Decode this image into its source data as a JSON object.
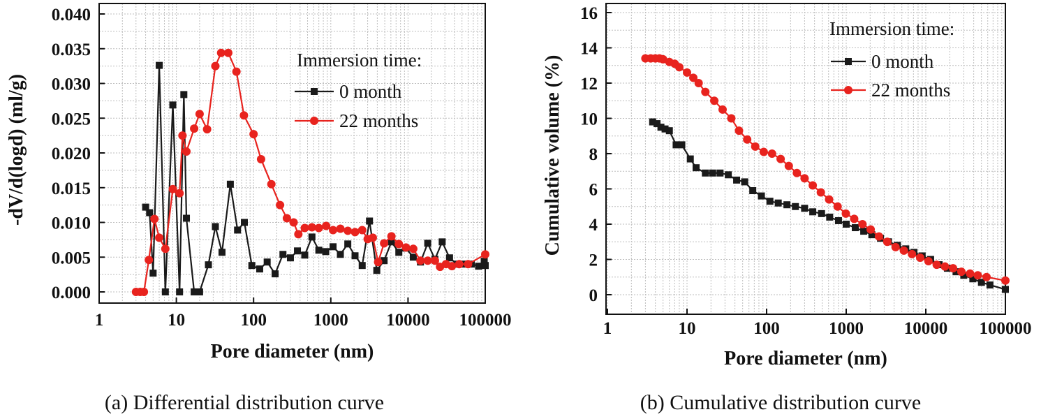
{
  "chart_data": [
    {
      "type": "line",
      "caption": "(a) Differential distribution curve",
      "xlabel": "Pore diameter (nm)",
      "ylabel": "-dV/d(logd) (ml/g)",
      "xscale": "log",
      "xlim": [
        1,
        100000
      ],
      "ylim": [
        0,
        0.04
      ],
      "xticks": [
        "1",
        "10",
        "100",
        "1000",
        "10000",
        "100000"
      ],
      "yticks": [
        "0.000",
        "0.005",
        "0.010",
        "0.015",
        "0.020",
        "0.025",
        "0.030",
        "0.035",
        "0.040"
      ],
      "grid": true,
      "legend_title": "Immersion time:",
      "legend_position": "top-right",
      "series": [
        {
          "name": "0 month",
          "color": "#1a1a1a",
          "marker": "square",
          "x": [
            4.0,
            4.5,
            5.0,
            6.0,
            7.2,
            9.0,
            11,
            12.5,
            13.5,
            17,
            20,
            26,
            32,
            39,
            50,
            62,
            76,
            95,
            120,
            150,
            190,
            240,
            300,
            370,
            460,
            570,
            700,
            860,
            1070,
            1330,
            1660,
            2060,
            2550,
            3170,
            3940,
            4900,
            6100,
            7600,
            9400,
            11700,
            14500,
            18000,
            22300,
            27700,
            34500,
            43000,
            53000,
            66000,
            82000,
            97000,
            100000
          ],
          "y": [
            0.0122,
            0.0114,
            0.0027,
            0.0326,
            0,
            0.0269,
            0,
            0.0284,
            0.0106,
            0,
            0,
            0.0039,
            0.0094,
            0.0057,
            0.0155,
            0.0089,
            0.01,
            0.0038,
            0.0033,
            0.0043,
            0.0026,
            0.0054,
            0.0049,
            0.0059,
            0.0053,
            0.0079,
            0.006,
            0.0058,
            0.0065,
            0.0054,
            0.0069,
            0.0052,
            0.0038,
            0.0102,
            0.0031,
            0.0045,
            0.0072,
            0.0057,
            0.0063,
            0.005,
            0.0043,
            0.007,
            0.0047,
            0.0072,
            0.0049,
            0.004,
            0.004,
            0.004,
            0.0037,
            0.0044,
            0.0038
          ]
        },
        {
          "name": "22 months",
          "color": "#e8231e",
          "marker": "circle",
          "x": [
            3.0,
            3.4,
            3.8,
            4.4,
            5.2,
            6.0,
            7.2,
            9,
            11,
            12,
            13.5,
            17,
            20,
            25,
            32,
            38,
            47,
            60,
            75,
            100,
            125,
            170,
            220,
            270,
            330,
            380,
            460,
            570,
            700,
            870,
            1070,
            1330,
            1660,
            2060,
            2550,
            3000,
            3500,
            4100,
            4900,
            6100,
            7600,
            9400,
            11700,
            14500,
            18000,
            22300,
            26000,
            31000,
            37000,
            46000,
            60000,
            100000
          ],
          "y": [
            0,
            0,
            0,
            0.0046,
            0.0105,
            0.0078,
            0.0062,
            0.0148,
            0.0142,
            0.0225,
            0.0202,
            0.0235,
            0.0256,
            0.0234,
            0.0325,
            0.0344,
            0.0344,
            0.0317,
            0.0254,
            0.0227,
            0.0191,
            0.0155,
            0.0125,
            0.0106,
            0.01,
            0.0083,
            0.0092,
            0.0093,
            0.0092,
            0.0095,
            0.0089,
            0.0091,
            0.0088,
            0.0086,
            0.0089,
            0.0076,
            0.0078,
            0.0043,
            0.007,
            0.008,
            0.0069,
            0.0064,
            0.0062,
            0.0045,
            0.0045,
            0.0045,
            0.0036,
            0.004,
            0.0037,
            0.004,
            0.004,
            0.0054
          ]
        }
      ]
    },
    {
      "type": "line",
      "caption": "(b) Cumulative distribution curve",
      "xlabel": "Pore diameter (nm)",
      "ylabel": "Cumulative volume (%)",
      "xscale": "log",
      "xlim": [
        1,
        100000
      ],
      "ylim": [
        0,
        16
      ],
      "xticks": [
        "1",
        "10",
        "100",
        "1000",
        "10000",
        "100000"
      ],
      "yticks": [
        "0",
        "2",
        "4",
        "6",
        "8",
        "10",
        "12",
        "14",
        "16"
      ],
      "grid": true,
      "legend_title": "Immersion time:",
      "legend_position": "top-right",
      "series": [
        {
          "name": "0 month",
          "color": "#1a1a1a",
          "marker": "square",
          "x": [
            3.7,
            4.2,
            4.7,
            5.3,
            6.0,
            7.3,
            8.6,
            11,
            13,
            17,
            21,
            26,
            33,
            42,
            53,
            67,
            86,
            110,
            140,
            180,
            230,
            300,
            380,
            490,
            620,
            800,
            1000,
            1300,
            1660,
            2100,
            2700,
            3400,
            4400,
            5600,
            7100,
            9000,
            11500,
            14700,
            18700,
            24000,
            30000,
            39000,
            50000,
            64000,
            100000
          ],
          "y": [
            9.8,
            9.7,
            9.5,
            9.4,
            9.3,
            8.5,
            8.5,
            7.7,
            7.2,
            6.9,
            6.9,
            6.9,
            6.8,
            6.5,
            6.4,
            5.9,
            5.6,
            5.3,
            5.2,
            5.1,
            5.0,
            4.9,
            4.7,
            4.6,
            4.4,
            4.2,
            4.0,
            3.8,
            3.6,
            3.4,
            3.2,
            3.0,
            2.8,
            2.6,
            2.4,
            2.2,
            2.0,
            1.7,
            1.5,
            1.3,
            1.1,
            0.9,
            0.7,
            0.55,
            0.3
          ]
        },
        {
          "name": "22 months",
          "color": "#e8231e",
          "marker": "circle",
          "x": [
            3,
            3.5,
            4,
            4.5,
            5,
            6,
            7,
            8,
            10,
            12,
            14,
            17,
            22,
            28,
            36,
            45,
            57,
            72,
            92,
            117,
            150,
            190,
            240,
            300,
            380,
            480,
            610,
            780,
            990,
            1260,
            1600,
            2030,
            2580,
            3280,
            4170,
            5300,
            6700,
            8500,
            10800,
            13700,
            17400,
            22000,
            28000,
            36000,
            45000,
            58000,
            100000
          ],
          "y": [
            13.4,
            13.4,
            13.4,
            13.4,
            13.35,
            13.2,
            13.1,
            12.9,
            12.6,
            12.3,
            12.0,
            11.5,
            11.0,
            10.5,
            10.0,
            9.3,
            8.8,
            8.4,
            8.1,
            8.0,
            7.7,
            7.3,
            6.9,
            6.6,
            6.2,
            5.8,
            5.4,
            5.0,
            4.6,
            4.3,
            4.0,
            3.7,
            3.3,
            3.0,
            2.7,
            2.5,
            2.3,
            2.1,
            1.9,
            1.7,
            1.6,
            1.5,
            1.3,
            1.2,
            1.1,
            1.0,
            0.8
          ]
        }
      ]
    }
  ]
}
